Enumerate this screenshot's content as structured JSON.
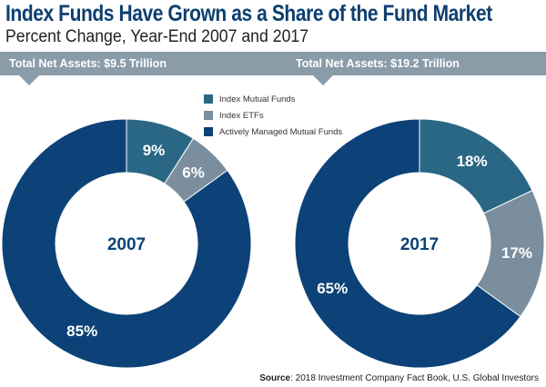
{
  "title": "Index Funds Have Grown as a Share of the Fund Market",
  "subtitle": "Percent Change, Year-End 2007 and 2017",
  "banners": [
    "Total Net Assets: $9.5 Trillion",
    "Total Net Assets: $19.2 Trillion"
  ],
  "source_label": "Source",
  "source_text": ": 2018 Investment Company Fact Book, U.S. Global Investors",
  "chart_data": [
    {
      "type": "pie",
      "donut": true,
      "center_label": "2007",
      "categories": [
        "Index Mutual Funds",
        "Index ETFs",
        "Actively Managed Mutual Funds"
      ],
      "values": [
        9,
        6,
        85
      ],
      "labels": [
        "9%",
        "6%",
        "85%"
      ],
      "colors": [
        "#2a6785",
        "#7b8e9e",
        "#0c4277"
      ]
    },
    {
      "type": "pie",
      "donut": true,
      "center_label": "2017",
      "categories": [
        "Index Mutual Funds",
        "Index ETFs",
        "Actively Managed Mutual Funds"
      ],
      "values": [
        18,
        17,
        65
      ],
      "labels": [
        "18%",
        "17%",
        "65%"
      ],
      "colors": [
        "#2a6785",
        "#7b8e9e",
        "#0c4277"
      ]
    }
  ],
  "legend": {
    "placement": "top-center",
    "items": [
      "Index Mutual Funds",
      "Index ETFs",
      "Actively Managed Mutual Funds"
    ]
  }
}
